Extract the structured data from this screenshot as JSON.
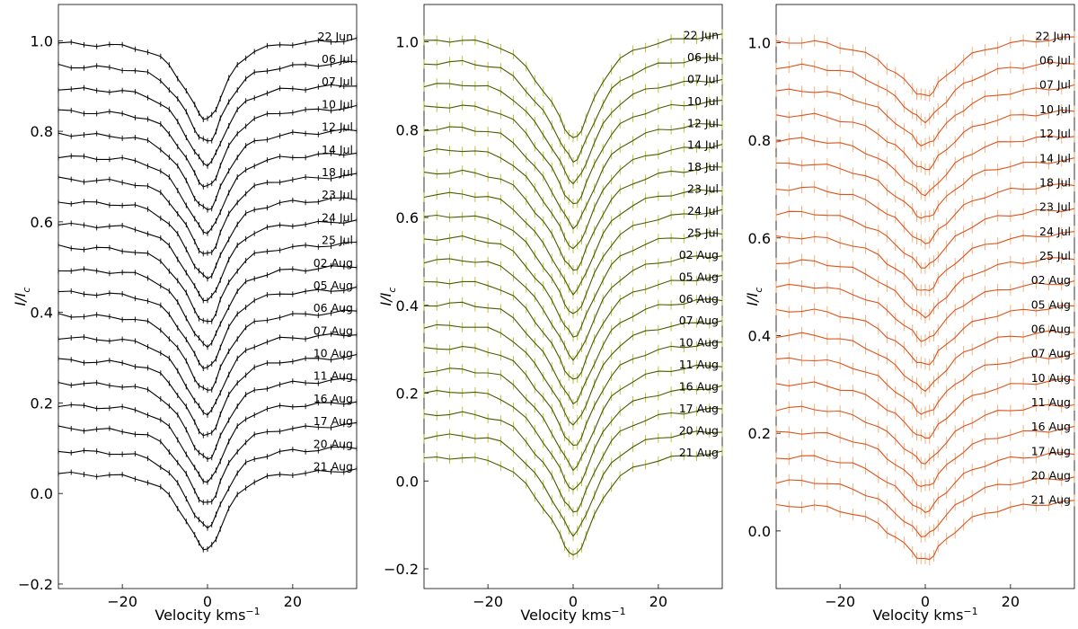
{
  "figure": {
    "ylabel_main": "I/I",
    "ylabel_sub": "c",
    "xlabel": "Velocity kms",
    "xlabel_sup": "−1"
  },
  "chart_data": [
    {
      "type": "line",
      "name": "panel-1",
      "color": "#000000",
      "errcolor": "#000000",
      "xlim": [
        -35,
        35
      ],
      "ylim": [
        -0.21,
        1.08
      ],
      "xticks": [
        -20,
        0,
        20
      ],
      "xtick_labels": [
        "−20",
        "0",
        "20"
      ],
      "yticks": [
        -0.2,
        0.0,
        0.2,
        0.4,
        0.6,
        0.8,
        1.0
      ],
      "ytick_labels": [
        "−0.2",
        "0.0",
        "0.2",
        "0.4",
        "0.6",
        "0.8",
        "1.0"
      ],
      "labels": [
        "22 Jun",
        "06 Jul",
        "07 Jul",
        "10 Jul",
        "12 Jul",
        "14 Jul",
        "18 Jul",
        "23 Jul",
        "24 Jul",
        "25 Jul",
        "02 Aug",
        "05 Aug",
        "06 Aug",
        "07 Aug",
        "10 Aug",
        "11 Aug",
        "16 Aug",
        "17 Aug",
        "20 Aug",
        "21 Aug"
      ],
      "baselines": [
        0.995,
        0.945,
        0.895,
        0.845,
        0.795,
        0.745,
        0.695,
        0.645,
        0.595,
        0.545,
        0.495,
        0.445,
        0.395,
        0.345,
        0.295,
        0.245,
        0.195,
        0.145,
        0.095,
        0.045
      ],
      "offset_step": 0.05,
      "profile": {
        "x": [
          -35,
          -32,
          -29,
          -26,
          -23,
          -20,
          -17,
          -14,
          -11,
          -9,
          -7,
          -5,
          -3,
          -2,
          -1,
          0,
          1,
          2,
          3,
          5,
          7,
          9,
          11,
          14,
          17,
          20,
          23,
          26,
          29,
          32,
          35
        ],
        "y": [
          0.0,
          -0.002,
          -0.003,
          -0.004,
          -0.005,
          -0.007,
          -0.011,
          -0.018,
          -0.033,
          -0.05,
          -0.075,
          -0.105,
          -0.14,
          -0.155,
          -0.165,
          -0.168,
          -0.162,
          -0.145,
          -0.12,
          -0.08,
          -0.05,
          -0.03,
          -0.018,
          -0.01,
          -0.004,
          -0.001,
          0.0,
          0.002,
          0.004,
          0.006,
          0.008
        ]
      },
      "error": 0.006
    },
    {
      "type": "line",
      "name": "panel-2",
      "color": "#4a5a00",
      "errcolor": "#b5bc2a",
      "xlim": [
        -35,
        35
      ],
      "ylim": [
        -0.245,
        1.085
      ],
      "xticks": [
        -20,
        0,
        20
      ],
      "xtick_labels": [
        "−20",
        "0",
        "20"
      ],
      "yticks": [
        -0.2,
        0.0,
        0.2,
        0.4,
        0.6,
        0.8,
        1.0
      ],
      "ytick_labels": [
        "−0.2",
        "0.0",
        "0.2",
        "0.4",
        "0.6",
        "0.8",
        "1.0"
      ],
      "labels": [
        "22 Jun",
        "06 Jul",
        "07 Jul",
        "10 Jul",
        "12 Jul",
        "14 Jul",
        "18 Jul",
        "23 Jul",
        "24 Jul",
        "25 Jul",
        "02 Aug",
        "05 Aug",
        "06 Aug",
        "07 Aug",
        "10 Aug",
        "11 Aug",
        "16 Aug",
        "17 Aug",
        "20 Aug",
        "21 Aug"
      ],
      "baselines": [
        1.0,
        0.95,
        0.9,
        0.85,
        0.8,
        0.75,
        0.7,
        0.65,
        0.6,
        0.55,
        0.5,
        0.45,
        0.4,
        0.35,
        0.3,
        0.25,
        0.2,
        0.15,
        0.1,
        0.05
      ],
      "offset_step": 0.05,
      "profile": {
        "x": [
          -35,
          -32,
          -29,
          -26,
          -23,
          -20,
          -17,
          -14,
          -11,
          -9,
          -7,
          -5,
          -3,
          -2,
          -1,
          0,
          1,
          2,
          3,
          5,
          7,
          9,
          11,
          14,
          17,
          20,
          23,
          26,
          29,
          32,
          35
        ],
        "y": [
          0.0,
          0.002,
          0.003,
          0.004,
          0.0,
          -0.004,
          -0.012,
          -0.03,
          -0.06,
          -0.085,
          -0.11,
          -0.14,
          -0.175,
          -0.195,
          -0.21,
          -0.222,
          -0.215,
          -0.198,
          -0.175,
          -0.13,
          -0.09,
          -0.06,
          -0.04,
          -0.022,
          -0.01,
          -0.002,
          0.003,
          0.006,
          0.01,
          0.012,
          0.014
        ]
      },
      "error": 0.011
    },
    {
      "type": "line",
      "name": "panel-3",
      "color": "#d9531e",
      "errcolor": "#f4a870",
      "xlim": [
        -35,
        35
      ],
      "ylim": [
        -0.118,
        1.078
      ],
      "xticks": [
        -20,
        0,
        20
      ],
      "xtick_labels": [
        "−20",
        "0",
        "20"
      ],
      "yticks": [
        0.0,
        0.2,
        0.4,
        0.6,
        0.8,
        1.0
      ],
      "ytick_labels": [
        "0.0",
        "0.2",
        "0.4",
        "0.6",
        "0.8",
        "1.0"
      ],
      "labels": [
        "22 Jun",
        "06 Jul",
        "07 Jul",
        "10 Jul",
        "12 Jul",
        "14 Jul",
        "18 Jul",
        "23 Jul",
        "24 Jul",
        "25 Jul",
        "02 Aug",
        "05 Aug",
        "06 Aug",
        "07 Aug",
        "10 Aug",
        "11 Aug",
        "16 Aug",
        "17 Aug",
        "20 Aug",
        "21 Aug"
      ],
      "baselines": [
        1.0,
        0.95,
        0.9,
        0.85,
        0.8,
        0.75,
        0.7,
        0.65,
        0.6,
        0.55,
        0.5,
        0.45,
        0.4,
        0.35,
        0.3,
        0.25,
        0.2,
        0.15,
        0.1,
        0.05
      ],
      "offset_step": 0.05,
      "profile": {
        "x": [
          -35,
          -32,
          -29,
          -26,
          -23,
          -20,
          -17,
          -14,
          -11,
          -9,
          -7,
          -5,
          -3,
          -2,
          -1,
          0,
          1,
          2,
          3,
          5,
          7,
          9,
          11,
          14,
          17,
          20,
          23,
          26,
          29,
          32,
          35
        ],
        "y": [
          0.0,
          0.001,
          0.002,
          0.001,
          -0.003,
          -0.008,
          -0.014,
          -0.024,
          -0.036,
          -0.05,
          -0.062,
          -0.078,
          -0.093,
          -0.102,
          -0.108,
          -0.11,
          -0.106,
          -0.098,
          -0.085,
          -0.068,
          -0.05,
          -0.036,
          -0.025,
          -0.014,
          -0.007,
          -0.002,
          0.001,
          0.004,
          0.006,
          0.008,
          0.01
        ]
      },
      "error": 0.012
    }
  ]
}
